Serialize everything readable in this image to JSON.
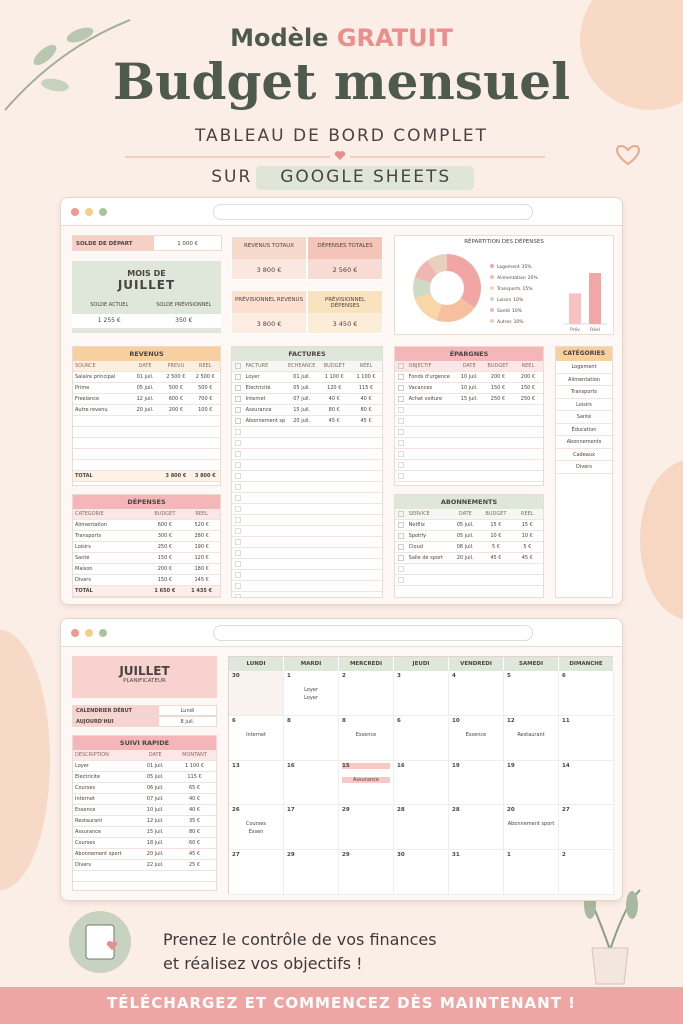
{
  "header": {
    "pre": "Modèle",
    "highlight": "GRATUIT",
    "title": "Budget mensuel",
    "subtitle": "TABLEAU DE BORD COMPLET",
    "platform_pre": "SUR",
    "platform": "GOOGLE SHEETS"
  },
  "dashboard": {
    "start": {
      "label": "SOLDE DE DÉPART",
      "value": "1 000 €"
    },
    "month": {
      "pre": "MOIS DE",
      "name": "JUILLET",
      "labels": [
        "SOLDE ACTUEL",
        "SOLDE PRÉVISIONNEL"
      ],
      "values": [
        "1 255 €",
        "350 €"
      ]
    },
    "summary": [
      {
        "label": "REVENUS TOTAUX",
        "value": "3 800 €"
      },
      {
        "label": "DÉPENSES TOTALES",
        "value": "2 560 €"
      },
      {
        "label": "PRÉVISIONNEL REVENUS",
        "value": "3 800 €"
      },
      {
        "label": "PRÉVISIONNEL DÉPENSES",
        "value": "3 450 €"
      }
    ],
    "chart": {
      "title": "RÉPARTITION DES DÉPENSES",
      "slices": [
        {
          "name": "Logement",
          "value": 35,
          "label": "35%"
        },
        {
          "name": "Alimentation",
          "value": 20,
          "label": "20%"
        },
        {
          "name": "Transports",
          "value": 15,
          "label": "15%"
        },
        {
          "name": "Loisirs",
          "value": 10,
          "label": "10%"
        },
        {
          "name": "Santé",
          "value": 10,
          "label": "10%"
        },
        {
          "name": "Autres",
          "value": 10,
          "label": "10%"
        }
      ],
      "bars": [
        {
          "name": "Prév",
          "value": 1800
        },
        {
          "name": "Réel",
          "value": 3000
        }
      ],
      "ylim": [
        0,
        4000
      ]
    },
    "revenus": {
      "title": "REVENUS",
      "headers": [
        "SOURCE",
        "DATE",
        "PRÉVU",
        "RÉEL"
      ],
      "rows": [
        [
          "Salaire principal",
          "01 juil.",
          "2 500 €",
          "2 500 €"
        ],
        [
          "Prime",
          "05 juil.",
          "500 €",
          "500 €"
        ],
        [
          "Freelance",
          "12 juil.",
          "600 €",
          "700 €"
        ],
        [
          "Autre revenu",
          "20 juil.",
          "200 €",
          "100 €"
        ]
      ],
      "total": [
        "TOTAL",
        "3 800 €",
        "3 800 €"
      ]
    },
    "factures": {
      "title": "FACTURES",
      "headers": [
        "FACTURE",
        "ÉCHÉANCE",
        "BUDGET",
        "RÉEL"
      ],
      "rows": [
        [
          "Loyer",
          "01 juil.",
          "1 100 €",
          "1 100 €"
        ],
        [
          "Électricité",
          "05 juil.",
          "120 €",
          "115 €"
        ],
        [
          "Internet",
          "07 juil.",
          "40 €",
          "40 €"
        ],
        [
          "Assurance",
          "15 juil.",
          "80 €",
          "80 €"
        ],
        [
          "Abonnement sport",
          "20 juil.",
          "45 €",
          "45 €"
        ]
      ]
    },
    "epargnes": {
      "title": "ÉPARGNES",
      "headers": [
        "OBJECTIF",
        "DATE",
        "BUDGET",
        "RÉEL"
      ],
      "rows": [
        [
          "Fonds d'urgence",
          "10 juil.",
          "200 €",
          "200 €"
        ],
        [
          "Vacances",
          "10 juil.",
          "150 €",
          "150 €"
        ],
        [
          "Achat voiture",
          "15 juil.",
          "250 €",
          "250 €"
        ]
      ]
    },
    "categories": {
      "title": "CATÉGORIES",
      "items": [
        "Logement",
        "Alimentation",
        "Transports",
        "Loisirs",
        "Santé",
        "Éducation",
        "Abonnements",
        "Cadeaux",
        "Divers"
      ]
    },
    "depenses": {
      "title": "DÉPENSES",
      "headers": [
        "CATÉGORIE",
        "BUDGET",
        "RÉEL"
      ],
      "rows": [
        [
          "Alimentation",
          "600 €",
          "520 €"
        ],
        [
          "Transports",
          "300 €",
          "280 €"
        ],
        [
          "Loisirs",
          "250 €",
          "190 €"
        ],
        [
          "Santé",
          "150 €",
          "120 €"
        ],
        [
          "Maison",
          "200 €",
          "180 €"
        ],
        [
          "Divers",
          "150 €",
          "145 €"
        ]
      ],
      "total": [
        "TOTAL",
        "1 650 €",
        "1 435 €"
      ]
    },
    "abonnements": {
      "title": "ABONNEMENTS",
      "headers": [
        "SERVICE",
        "DATE",
        "BUDGET",
        "RÉEL"
      ],
      "rows": [
        [
          "Netflix",
          "05 juil.",
          "15 €",
          "15 €"
        ],
        [
          "Spotify",
          "05 juil.",
          "10 €",
          "10 €"
        ],
        [
          "Cloud",
          "08 juil.",
          "5 €",
          "5 €"
        ],
        [
          "Salle de sport",
          "20 juil.",
          "45 €",
          "45 €"
        ]
      ]
    }
  },
  "planner": {
    "month": "JUILLET",
    "label": "PLANIFICATEUR",
    "settings": [
      [
        "CALENDRIER DÉBUT",
        "Lundi"
      ],
      [
        "AUJOURD'HUI",
        "8 juil."
      ]
    ],
    "quick": {
      "title": "SUIVI RAPIDE",
      "headers": [
        "DESCRIPTION",
        "DATE",
        "MONTANT"
      ],
      "rows": [
        [
          "Loyer",
          "01 juil.",
          "1 100 €"
        ],
        [
          "Électricité",
          "05 juil.",
          "115 €"
        ],
        [
          "Courses",
          "06 juil.",
          "65 €"
        ],
        [
          "Internet",
          "07 juil.",
          "40 €"
        ],
        [
          "Essence",
          "10 juil.",
          "40 €"
        ],
        [
          "Restaurant",
          "12 juil.",
          "35 €"
        ],
        [
          "Assurance",
          "15 juil.",
          "80 €"
        ],
        [
          "Courses",
          "18 juil.",
          "60 €"
        ],
        [
          "Abonnement sport",
          "20 juil.",
          "45 €"
        ],
        [
          "Divers",
          "22 juil.",
          "25 €"
        ]
      ]
    },
    "days": [
      "LUNDI",
      "MARDI",
      "MERCREDI",
      "JEUDI",
      "VENDREDI",
      "SAMEDI",
      "DIMANCHE"
    ],
    "weeks": [
      [
        {
          "d": "30"
        },
        {
          "d": "1",
          "e": [
            "Loyer",
            "Loyer"
          ]
        },
        {
          "d": "2"
        },
        {
          "d": "3"
        },
        {
          "d": "4"
        },
        {
          "d": "5"
        },
        {
          "d": "6"
        }
      ],
      [
        {
          "d": "6",
          "e": [
            "Internet"
          ]
        },
        {
          "d": "8"
        },
        {
          "d": "8",
          "e": [
            "Essence"
          ]
        },
        {
          "d": "6"
        },
        {
          "d": "10",
          "e": [
            "Essence"
          ]
        },
        {
          "d": "12",
          "e": [
            "Restaurant"
          ]
        },
        {
          "d": "11"
        }
      ],
      [
        {
          "d": "13"
        },
        {
          "d": "16"
        },
        {
          "d": "15",
          "e": [
            "Assurance"
          ]
        },
        {
          "d": "16"
        },
        {
          "d": "19"
        },
        {
          "d": "19"
        },
        {
          "d": "14"
        }
      ],
      [
        {
          "d": "26",
          "e": [
            "Courses",
            "Essen"
          ]
        },
        {
          "d": "17"
        },
        {
          "d": "29"
        },
        {
          "d": "28"
        },
        {
          "d": "28"
        },
        {
          "d": "20",
          "e": [
            "Abonnement sport"
          ]
        },
        {
          "d": "27"
        }
      ],
      [
        {
          "d": "27"
        },
        {
          "d": "29"
        },
        {
          "d": "29"
        },
        {
          "d": "30"
        },
        {
          "d": "31"
        },
        {
          "d": "1"
        },
        {
          "d": "2"
        }
      ]
    ]
  },
  "footer": {
    "lines": [
      "Prenez le contrôle de vos finances",
      "et réalisez vos objectifs !"
    ],
    "cta": "TÉLÉCHARGEZ ET COMMENCEZ DÈS MAINTENANT !"
  }
}
